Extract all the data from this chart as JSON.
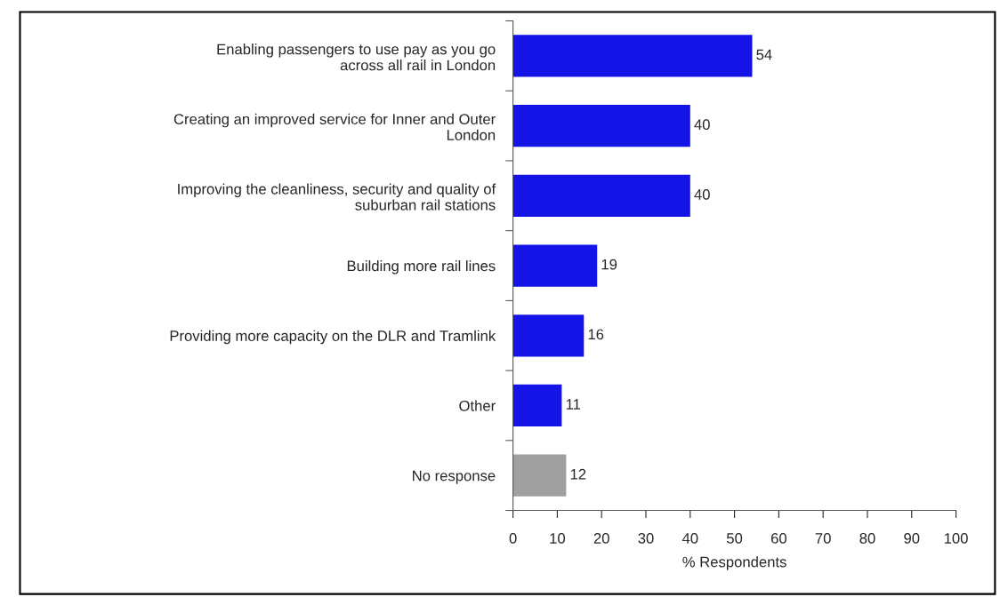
{
  "chart_data": {
    "type": "bar",
    "orientation": "horizontal",
    "xlabel": "% Respondents",
    "categories": [
      "Enabling passengers to use pay as you go\nacross all rail in London",
      "Creating an improved service for Inner and Outer\nLondon",
      "Improving the cleanliness, security and quality of\nsuburban rail stations",
      "Building more rail lines",
      "Providing more capacity on the DLR and Tramlink",
      "Other",
      "No response"
    ],
    "values": [
      54,
      40,
      40,
      19,
      16,
      11,
      12
    ],
    "colors": [
      "#1414e6",
      "#1414e6",
      "#1414e6",
      "#1414e6",
      "#1414e6",
      "#1414e6",
      "#a0a0a0"
    ],
    "xlim": [
      0,
      100
    ],
    "xticks": [
      0,
      10,
      20,
      30,
      40,
      50,
      60,
      70,
      80,
      90,
      100
    ],
    "data_labels": true,
    "grid": false
  }
}
